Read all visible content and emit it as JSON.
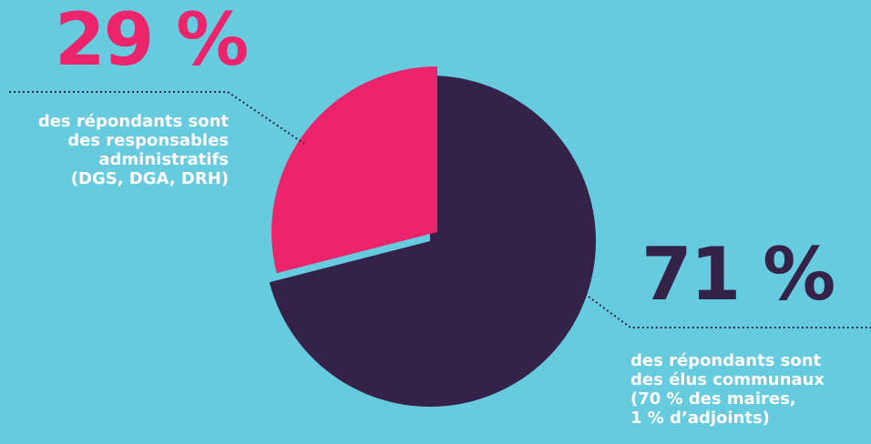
{
  "colors": {
    "background": "#66cbdf",
    "pink": "#ec246c",
    "dark": "#342249",
    "leader": "#2b2b44"
  },
  "chart_data": {
    "type": "pie",
    "categories": [
      "responsables administratifs",
      "élus communaux"
    ],
    "values": [
      29,
      71
    ],
    "colors": [
      "#ec246c",
      "#342249"
    ],
    "labels": [
      {
        "value": "29 %",
        "text": "des répondants sont\ndes responsables\nadministratifs\n(DGS, DGA, DRH)"
      },
      {
        "value": "71 %",
        "text": "des répondants sont\ndes élus communaux\n(70 % des maires,\n1 % d’adjoints)"
      }
    ]
  }
}
